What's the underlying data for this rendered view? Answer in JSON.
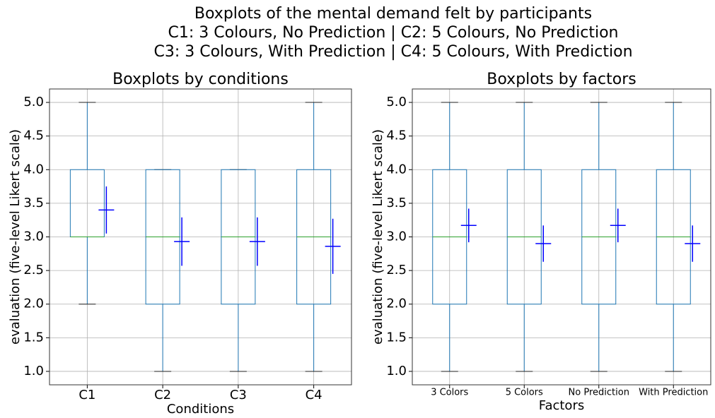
{
  "title": [
    "Boxplots of the mental demand felt by participants",
    "C1: 3 Colours, No Prediction | C2: 5 Colours, No Prediction",
    "C3: 3 Colours, With Prediction | C4: 5 Colours, With Prediction"
  ],
  "chart_data": [
    {
      "type": "box",
      "title": "Boxplots by conditions",
      "xlabel": "Conditions",
      "ylabel": "evaluation (five-level Likert scale)",
      "categories": [
        "C1",
        "C2",
        "C3",
        "C4"
      ],
      "boxes": [
        {
          "min": 2,
          "q1": 3,
          "median": 3,
          "q3": 4,
          "max": 5
        },
        {
          "min": 1,
          "q1": 2,
          "median": 3,
          "q3": 4,
          "max": 4
        },
        {
          "min": 1,
          "q1": 2,
          "median": 3,
          "q3": 4,
          "max": 4
        },
        {
          "min": 1,
          "q1": 2,
          "median": 3,
          "q3": 4,
          "max": 5
        }
      ],
      "means": [
        3.4,
        2.93,
        2.93,
        2.86
      ],
      "errors": [
        0.35,
        0.36,
        0.36,
        0.41
      ],
      "box_color": "#1f77b4",
      "median_color": "#2ca02c",
      "mean_color": "#0000ff",
      "ylim": [
        0.8,
        5.2
      ],
      "yticks": [
        {
          "value": 1,
          "label": "1.0"
        },
        1.5,
        {
          "value": 2,
          "label": "2.0"
        },
        2.5,
        {
          "value": 3,
          "label": "3.0"
        },
        3.5,
        {
          "value": 4,
          "label": "4.0"
        },
        4.5,
        {
          "value": 5,
          "label": "5.0"
        }
      ],
      "grid": true
    },
    {
      "type": "box",
      "title": "Boxplots by factors",
      "xlabel": "Factors",
      "ylabel": "evaluation (five-level Likert scale)",
      "categories": [
        "3 Colors",
        "5 Colors",
        "No Prediction",
        "With Prediction"
      ],
      "boxes": [
        {
          "min": 1,
          "q1": 2,
          "median": 3,
          "q3": 4,
          "max": 5
        },
        {
          "min": 1,
          "q1": 2,
          "median": 3,
          "q3": 4,
          "max": 5
        },
        {
          "min": 1,
          "q1": 2,
          "median": 3,
          "q3": 4,
          "max": 5
        },
        {
          "min": 1,
          "q1": 2,
          "median": 3,
          "q3": 4,
          "max": 5
        }
      ],
      "means": [
        3.17,
        2.9,
        3.17,
        2.9
      ],
      "errors": [
        0.25,
        0.27,
        0.25,
        0.27
      ],
      "box_color": "#1f77b4",
      "median_color": "#2ca02c",
      "mean_color": "#0000ff",
      "ylim": [
        0.8,
        5.2
      ],
      "yticks": [
        {
          "value": 1,
          "label": "1.0"
        },
        1.5,
        {
          "value": 2,
          "label": "2.0"
        },
        2.5,
        {
          "value": 3,
          "label": "3.0"
        },
        3.5,
        {
          "value": 4,
          "label": "4.0"
        },
        4.5,
        {
          "value": 5,
          "label": "5.0"
        }
      ],
      "grid": true
    }
  ]
}
